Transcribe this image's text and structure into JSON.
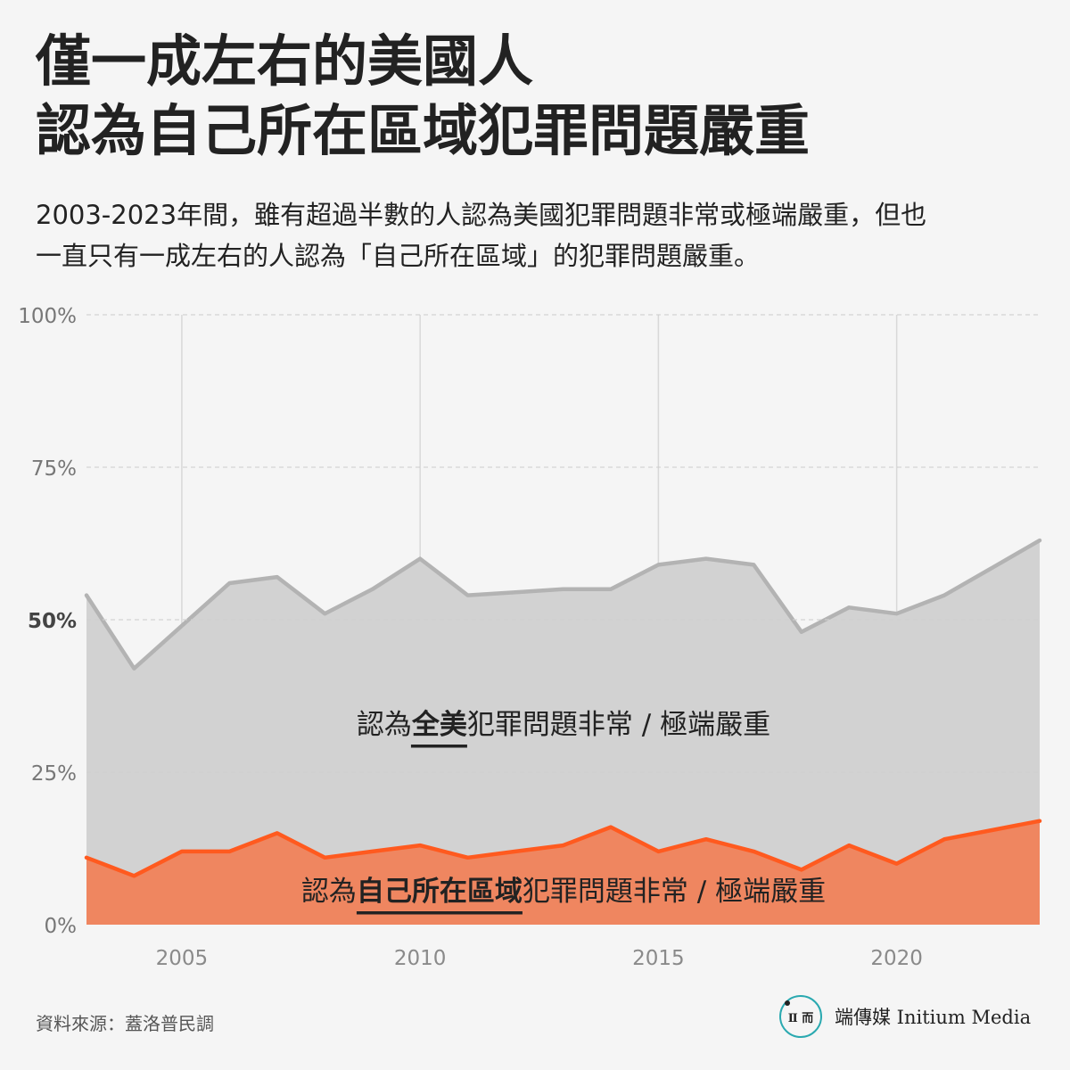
{
  "header": {
    "title_line1": "僅一成左右的美國人",
    "title_line2": "認為自己所在區域犯罪問題嚴重",
    "subtitle_line1": "2003-2023年間，雖有超過半數的人認為美國犯罪問題非常或極端嚴重，但也",
    "subtitle_line2": "一直只有一成左右的人認為「自己所在區域」的犯罪問題嚴重。"
  },
  "chart_data": {
    "type": "area",
    "x": [
      2003,
      2004,
      2005,
      2006,
      2007,
      2008,
      2009,
      2010,
      2011,
      2012,
      2013,
      2014,
      2015,
      2016,
      2017,
      2018,
      2019,
      2020,
      2021,
      2022,
      2023
    ],
    "series": [
      {
        "name": "",
        "label_parts": [
          "認為",
          "全美",
          "犯罪問題非常 / 極端嚴重"
        ],
        "values": [
          54,
          42,
          49,
          56,
          57,
          51,
          55,
          60,
          54,
          54.5,
          55,
          55,
          59,
          60,
          59,
          48,
          52,
          51,
          54,
          58.5,
          63
        ],
        "color": "#b3b3b3",
        "fill": "#d2d2d2"
      },
      {
        "name": "",
        "label_parts": [
          "認為",
          "自己所在區域",
          "犯罪問題非常 / 極端嚴重"
        ],
        "values": [
          11,
          8,
          12,
          12,
          15,
          11,
          12,
          13,
          11,
          12,
          13,
          16,
          12,
          14,
          12,
          9,
          13,
          10,
          14,
          15.5,
          17
        ],
        "color": "#ff5a1f",
        "fill": "#ef8660"
      }
    ],
    "xlim": [
      2003,
      2023
    ],
    "ylim": [
      0,
      100
    ],
    "y_ticks": [
      0,
      25,
      50,
      75,
      100
    ],
    "y_tick_labels": [
      "0%",
      "25%",
      "50%",
      "75%",
      "100%"
    ],
    "x_ticks": [
      2005,
      2010,
      2015,
      2020
    ],
    "x_tick_labels": [
      "2005",
      "2010",
      "2015",
      "2020"
    ],
    "emphasized_y_tick": "50%",
    "grid": true,
    "legend": "inline"
  },
  "footer": {
    "source": "資料來源：蓋洛普民調",
    "brand_name": "端傳媒 Initium Media",
    "brand_logo_text": "Ⅱ 而"
  }
}
